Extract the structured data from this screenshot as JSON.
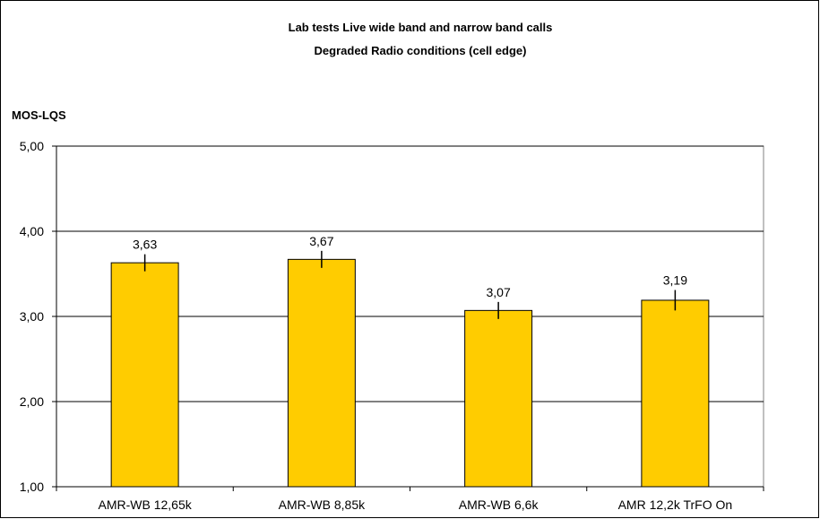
{
  "chart_data": {
    "type": "bar",
    "title": "Lab tests Live wide band and narrow band calls",
    "subtitle": "Degraded Radio conditions (cell edge)",
    "ylabel": "MOS-LQS",
    "xlabel": "",
    "categories": [
      "AMR-WB 12,65k",
      "AMR-WB 8,85k",
      "AMR-WB 6,6k",
      "AMR 12,2k TrFO On"
    ],
    "values": [
      3.63,
      3.67,
      3.07,
      3.19
    ],
    "data_labels": [
      "3,63",
      "3,67",
      "3,07",
      "3,19"
    ],
    "error_margin": [
      0.1,
      0.1,
      0.1,
      0.12
    ],
    "ylim": [
      1,
      5
    ],
    "yticks": [
      1,
      2,
      3,
      4,
      5
    ],
    "ytick_labels": [
      "1,00",
      "2,00",
      "3,00",
      "4,00",
      "5,00"
    ],
    "grid": true,
    "legend": "none",
    "bar_color": "#FFCC00",
    "bar_edge_color": "#000000"
  }
}
